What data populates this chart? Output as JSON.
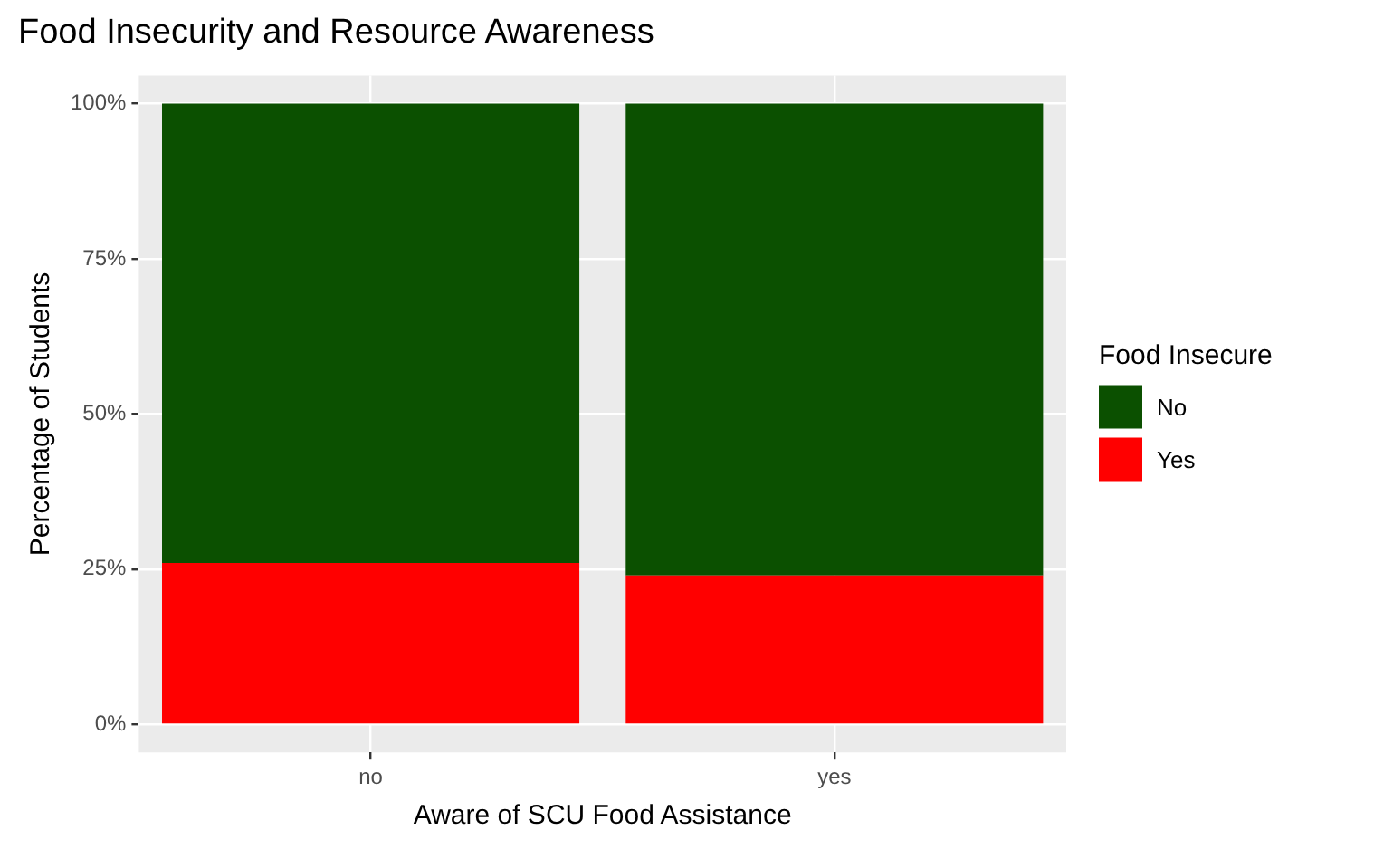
{
  "chart_data": {
    "type": "bar",
    "title": "Food Insecurity and Resource Awareness",
    "xlabel": "Aware of SCU Food Assistance",
    "ylabel": "Percentage of Students",
    "legend_title": "Food Insecure",
    "categories": [
      "no",
      "yes"
    ],
    "series": [
      {
        "name": "Yes",
        "color": "#ff0000",
        "values": [
          26,
          24
        ]
      },
      {
        "name": "No",
        "color": "#0b5000",
        "values": [
          74,
          76
        ]
      }
    ],
    "stacked": true,
    "ylim": [
      -4.5,
      104.5
    ],
    "yticks": [
      {
        "value": 0,
        "label": "0%"
      },
      {
        "value": 25,
        "label": "25%"
      },
      {
        "value": 50,
        "label": "50%"
      },
      {
        "value": 75,
        "label": "75%"
      },
      {
        "value": 100,
        "label": "100%"
      }
    ],
    "grid": true,
    "legend": "right"
  }
}
